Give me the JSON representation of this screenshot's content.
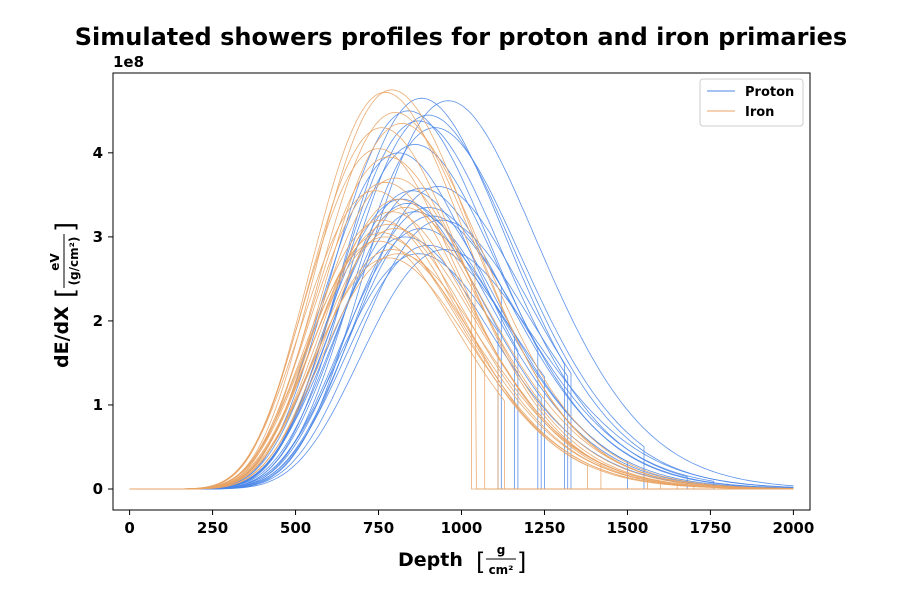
{
  "chart_data": {
    "type": "line",
    "title": "Simulated showers profiles for proton and iron primaries",
    "xlabel": "Depth",
    "xlabel_unit": {
      "numerator": "g",
      "denominator": "cm²"
    },
    "ylabel": "dE/dX",
    "ylabel_unit": {
      "numerator": "eV",
      "denominator": "(g/cm²)"
    },
    "y_offset_text": "1e8",
    "xlim": [
      -50,
      2050
    ],
    "ylim": [
      -0.25,
      4.95
    ],
    "y_scale_multiplier": 100000000,
    "xticks": [
      0,
      250,
      500,
      750,
      1000,
      1250,
      1500,
      1750,
      2000
    ],
    "yticks": [
      0,
      1,
      2,
      3,
      4
    ],
    "legend_position": "top-right",
    "grid": false,
    "series": [
      {
        "name": "Proton",
        "color": "#4a86e8",
        "profiles": [
          {
            "xmax": 960,
            "peak": 4.62,
            "end": 2000
          },
          {
            "xmax": 880,
            "peak": 4.65,
            "end": 1310
          },
          {
            "xmax": 900,
            "peak": 4.45,
            "end": 2000
          },
          {
            "xmax": 840,
            "peak": 4.5,
            "end": 1230
          },
          {
            "xmax": 870,
            "peak": 4.38,
            "end": 1680
          },
          {
            "xmax": 920,
            "peak": 4.3,
            "end": 1550
          },
          {
            "xmax": 860,
            "peak": 4.1,
            "end": 2000
          },
          {
            "xmax": 810,
            "peak": 4.0,
            "end": 1170
          },
          {
            "xmax": 930,
            "peak": 3.6,
            "end": 1330
          },
          {
            "xmax": 880,
            "peak": 3.58,
            "end": 2000
          },
          {
            "xmax": 850,
            "peak": 3.55,
            "end": 1500
          },
          {
            "xmax": 820,
            "peak": 3.45,
            "end": 1240
          },
          {
            "xmax": 900,
            "peak": 3.35,
            "end": 1120
          },
          {
            "xmax": 860,
            "peak": 3.3,
            "end": 2000
          },
          {
            "xmax": 940,
            "peak": 3.2,
            "end": 1320
          },
          {
            "xmax": 880,
            "peak": 3.1,
            "end": 1160
          },
          {
            "xmax": 830,
            "peak": 3.0,
            "end": 2000
          },
          {
            "xmax": 900,
            "peak": 2.9,
            "end": 1250
          },
          {
            "xmax": 950,
            "peak": 2.85,
            "end": 2000
          },
          {
            "xmax": 870,
            "peak": 2.8,
            "end": 1110
          },
          {
            "xmax": 910,
            "peak": 3.25,
            "end": 1760
          },
          {
            "xmax": 840,
            "peak": 3.4,
            "end": 2000
          }
        ]
      },
      {
        "name": "Iron",
        "color": "#e8a364",
        "profiles": [
          {
            "xmax": 790,
            "peak": 4.75,
            "end": 2000
          },
          {
            "xmax": 770,
            "peak": 4.72,
            "end": 1045
          },
          {
            "xmax": 800,
            "peak": 4.48,
            "end": 2000
          },
          {
            "xmax": 760,
            "peak": 4.3,
            "end": 1420
          },
          {
            "xmax": 820,
            "peak": 4.35,
            "end": 2000
          },
          {
            "xmax": 750,
            "peak": 4.05,
            "end": 1110
          },
          {
            "xmax": 780,
            "peak": 3.95,
            "end": 2000
          },
          {
            "xmax": 800,
            "peak": 3.7,
            "end": 1030
          },
          {
            "xmax": 770,
            "peak": 3.65,
            "end": 2000
          },
          {
            "xmax": 740,
            "peak": 3.55,
            "end": 1380
          },
          {
            "xmax": 810,
            "peak": 3.45,
            "end": 2000
          },
          {
            "xmax": 790,
            "peak": 3.3,
            "end": 1700
          },
          {
            "xmax": 760,
            "peak": 3.2,
            "end": 1070
          },
          {
            "xmax": 780,
            "peak": 3.15,
            "end": 2000
          },
          {
            "xmax": 800,
            "peak": 3.1,
            "end": 1560
          },
          {
            "xmax": 770,
            "peak": 3.0,
            "end": 2000
          },
          {
            "xmax": 750,
            "peak": 2.95,
            "end": 1130
          },
          {
            "xmax": 790,
            "peak": 2.85,
            "end": 2000
          },
          {
            "xmax": 810,
            "peak": 2.8,
            "end": 1600
          },
          {
            "xmax": 780,
            "peak": 2.75,
            "end": 2000
          },
          {
            "xmax": 830,
            "peak": 3.35,
            "end": 1650
          },
          {
            "xmax": 760,
            "peak": 3.05,
            "end": 2000
          }
        ]
      }
    ]
  }
}
